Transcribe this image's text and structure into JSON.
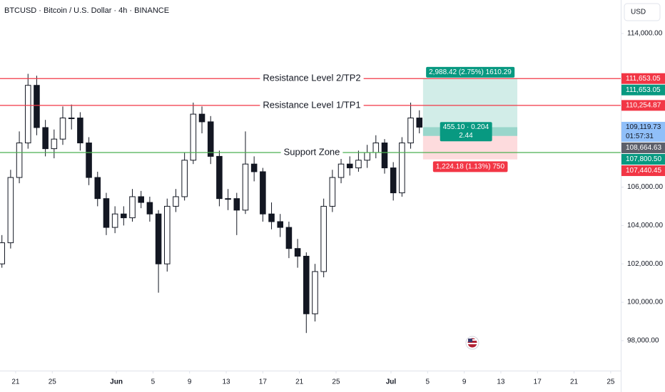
{
  "chart_data": {
    "type": "candlestick",
    "title": "BTCUSD · Bitcoin / U.S. Dollar · 4h · BINANCE",
    "currency": "USD",
    "x": [
      19.5,
      20.45,
      21.4,
      22.35,
      23.3,
      24.25,
      25.2,
      26.15,
      27.1,
      28.05,
      29,
      29.95,
      30.9,
      31.85,
      32.8,
      33.75,
      34.7,
      35.65,
      36.6,
      37.55,
      38.5,
      39.45,
      40.4,
      41.35,
      42.3,
      43.25,
      44.2,
      45.15,
      46.1,
      47.05,
      48,
      48.95,
      49.9,
      50.85,
      51.8,
      52.75,
      53.7,
      54.65,
      55.6,
      56.55,
      57.5,
      58.45,
      59.4,
      60.35,
      61.3,
      62.25,
      63.2,
      64.15,
      65.1
    ],
    "open": [
      102000,
      103100,
      106500,
      108300,
      111300,
      109100,
      108000,
      108500,
      109600,
      109600,
      108300,
      106500,
      105400,
      103900,
      104600,
      104400,
      105500,
      105200,
      104600,
      102000,
      105000,
      105500,
      107400,
      109800,
      109400,
      107600,
      105400,
      105400,
      104800,
      107200,
      106800,
      104600,
      104200,
      103900,
      102800,
      102400,
      99400,
      101600,
      105000,
      106500,
      107200,
      107000,
      107400,
      107800,
      108300,
      107000,
      105700,
      108300,
      109600
    ],
    "high": [
      103500,
      106900,
      108900,
      111900,
      111800,
      109500,
      109000,
      110200,
      110300,
      109900,
      108600,
      106800,
      105700,
      105000,
      105000,
      105900,
      105800,
      105500,
      104800,
      105400,
      105900,
      107800,
      110400,
      110200,
      109700,
      107900,
      105900,
      105700,
      108900,
      107600,
      107000,
      105200,
      104600,
      104200,
      103300,
      102600,
      102000,
      105400,
      106900,
      107900,
      107600,
      107900,
      108200,
      108700,
      108500,
      107300,
      108600,
      110400,
      110000
    ],
    "low": [
      101800,
      102800,
      106200,
      108000,
      108700,
      107600,
      107500,
      108200,
      109000,
      107900,
      106100,
      105000,
      103500,
      103600,
      104000,
      104200,
      104900,
      104200,
      100500,
      101600,
      104700,
      105300,
      107200,
      108800,
      107200,
      105000,
      104800,
      103500,
      104600,
      106300,
      104200,
      103800,
      103400,
      102300,
      101800,
      98400,
      99000,
      101300,
      104700,
      106200,
      106600,
      106800,
      107000,
      107500,
      106700,
      105300,
      105500,
      108000,
      108800
    ],
    "close": [
      103100,
      106500,
      108300,
      111300,
      109100,
      108000,
      108500,
      109600,
      109600,
      108300,
      106500,
      105400,
      103900,
      104600,
      104400,
      105500,
      105200,
      104600,
      102000,
      105000,
      105500,
      107400,
      109800,
      109400,
      107600,
      105400,
      105400,
      104800,
      107200,
      106800,
      104600,
      104200,
      103900,
      102800,
      102400,
      99400,
      101600,
      105000,
      106500,
      107200,
      107000,
      107400,
      107800,
      108300,
      107000,
      105700,
      108300,
      109600,
      109119.73
    ],
    "candle_colors": {
      "up": "#ffffff",
      "down": "#131722",
      "wick": "#131722"
    },
    "xlim": [
      19.29,
      87.1
    ],
    "xticks": [
      21,
      25,
      {
        "value": 32,
        "label": "Jun"
      },
      {
        "value": 36,
        "label": "5"
      },
      {
        "value": 40,
        "label": "9"
      },
      {
        "value": 44,
        "label": "13"
      },
      {
        "value": 48,
        "label": "17"
      },
      {
        "value": 52,
        "label": "21"
      },
      {
        "value": 56,
        "label": "25"
      },
      {
        "value": 62,
        "label": "Jul"
      },
      {
        "value": 66,
        "label": "5"
      },
      {
        "value": 70,
        "label": "9"
      },
      {
        "value": 74,
        "label": "13"
      },
      {
        "value": 78,
        "label": "17"
      },
      {
        "value": 82,
        "label": "21"
      },
      {
        "value": 86,
        "label": "25"
      }
    ],
    "ylim": [
      96440,
      115745
    ],
    "yticks": [
      {
        "value": 114000,
        "label": "114,000.00"
      },
      {
        "value": 106000,
        "label": "106,000.00"
      },
      {
        "value": 104000,
        "label": "104,000.00"
      },
      {
        "value": 102000,
        "label": "102,000.00"
      },
      {
        "value": 100000,
        "label": "100,000.00"
      },
      {
        "value": 98000,
        "label": "98,000.00"
      }
    ],
    "levels": [
      {
        "name": "Resistance Level 2/TP2",
        "value": 111653.05,
        "color": "#f23645"
      },
      {
        "name": "Resistance Level 1/TP1",
        "value": 110254.87,
        "color": "#f23645"
      },
      {
        "name": "Support Zone",
        "value": 107800.5,
        "color": "#4caf50"
      }
    ],
    "position": {
      "start": 65.5,
      "end": 75.8,
      "target": 111653.05,
      "entry": 108664.63,
      "stop": 107440.45,
      "current": 109119.73,
      "target_label": "2,988.42 (2.75%) 1610.29",
      "current_label": [
        "455.10 · 0.204",
        "2.44"
      ],
      "stop_label": "1,224.18 (1.13%) 750"
    },
    "price_tags": [
      {
        "value": 111653.05,
        "label": "111,653.05",
        "color": "#f23645"
      },
      {
        "value": 111653.05,
        "label": "111,653.05",
        "color": "#089981"
      },
      {
        "value": 110254.87,
        "label": "110,254.87",
        "color": "#f23645"
      },
      {
        "value": 109119.73,
        "label": "109,119.73",
        "color": "#90bff9",
        "countdown": "01:57:31"
      },
      {
        "value": 108664.63,
        "label": "108,664.63",
        "color": "#5d606b"
      },
      {
        "value": 107800.5,
        "label": "107,800.50",
        "color": "#089981"
      },
      {
        "value": 107440.45,
        "label": "107,440.45",
        "color": "#f23645"
      }
    ]
  }
}
